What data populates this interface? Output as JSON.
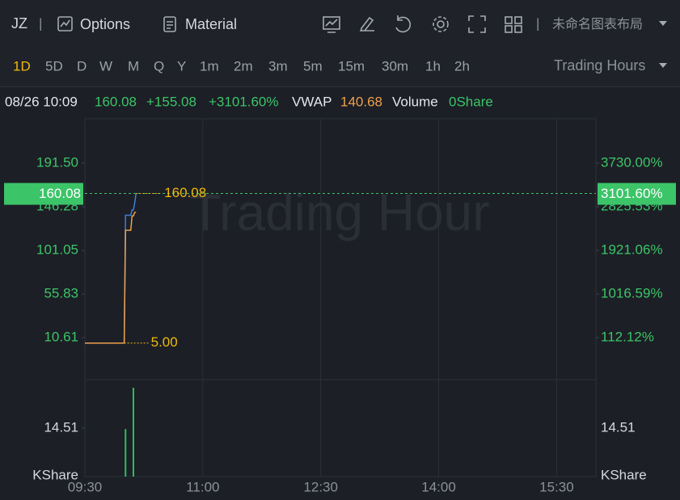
{
  "toolbar": {
    "symbol": "JZ",
    "options": "Options",
    "material": "Material",
    "layout": "未命名图表布局",
    "periods": [
      "1D",
      "5D",
      "D",
      "W",
      "M",
      "Q",
      "Y",
      "1m",
      "2m",
      "3m",
      "5m",
      "15m",
      "30m",
      "1h",
      "2h"
    ],
    "session": "Trading Hours"
  },
  "info": {
    "datetime": "08/26 10:09",
    "price": "160.08",
    "change": "+155.08",
    "change_pct": "+3101.60%",
    "vwap": "140.68",
    "volume_label": "Volume",
    "volume": "0Share"
  },
  "chart_data": {
    "type": "line",
    "watermark": "Trading Hour",
    "x": [
      "09:30",
      "10:00",
      "10:01",
      "10:05",
      "10:06",
      "10:07",
      "10:08",
      "10:09"
    ],
    "series": [
      {
        "color": "#3d7fd9",
        "values": [
          5,
          5,
          137.5,
          137.5,
          143,
          143,
          150,
          160.08
        ]
      },
      {
        "name": "VWAP",
        "color": "#f0a04b",
        "values": [
          5,
          5,
          121.9,
          121.9,
          136.8,
          136.8,
          140.5,
          140.68
        ]
      }
    ],
    "xlim": [
      "09:30",
      "16:00"
    ],
    "xticks": [
      "09:30",
      "11:00",
      "12:30",
      "14:00",
      "15:30"
    ],
    "ylim": [
      -32.94,
      237.56
    ],
    "yticks": [
      {
        "value": 191.5,
        "label": "191.50"
      },
      {
        "value": 146.28,
        "label": "146.28"
      },
      {
        "value": 101.05,
        "label": "101.05"
      },
      {
        "value": 55.83,
        "label": "55.83"
      },
      {
        "value": 10.61,
        "label": "10.61"
      }
    ],
    "y2lim": [
      -758.8,
      4651.2
    ],
    "y2ticks": [
      {
        "value": 3730,
        "label": "3730.00%"
      },
      {
        "value": 2825.53,
        "label": "2825.53%"
      },
      {
        "value": 1921.06,
        "label": "1921.06%"
      },
      {
        "value": 1016.59,
        "label": "1016.59%"
      },
      {
        "value": 112.12,
        "label": "112.12%"
      }
    ],
    "last": 160.08,
    "last_pct": {
      "value": 3101.6,
      "label": "3101.60%"
    },
    "low": {
      "value": 5,
      "label": "5.00"
    },
    "volume": {
      "x": [
        "10:01",
        "10:07"
      ],
      "values": [
        14.2,
        26.6
      ],
      "color": "#2dbe60",
      "ylim": [
        0,
        29.02
      ],
      "yticks": [
        14.51
      ],
      "unit": "KShare"
    }
  }
}
